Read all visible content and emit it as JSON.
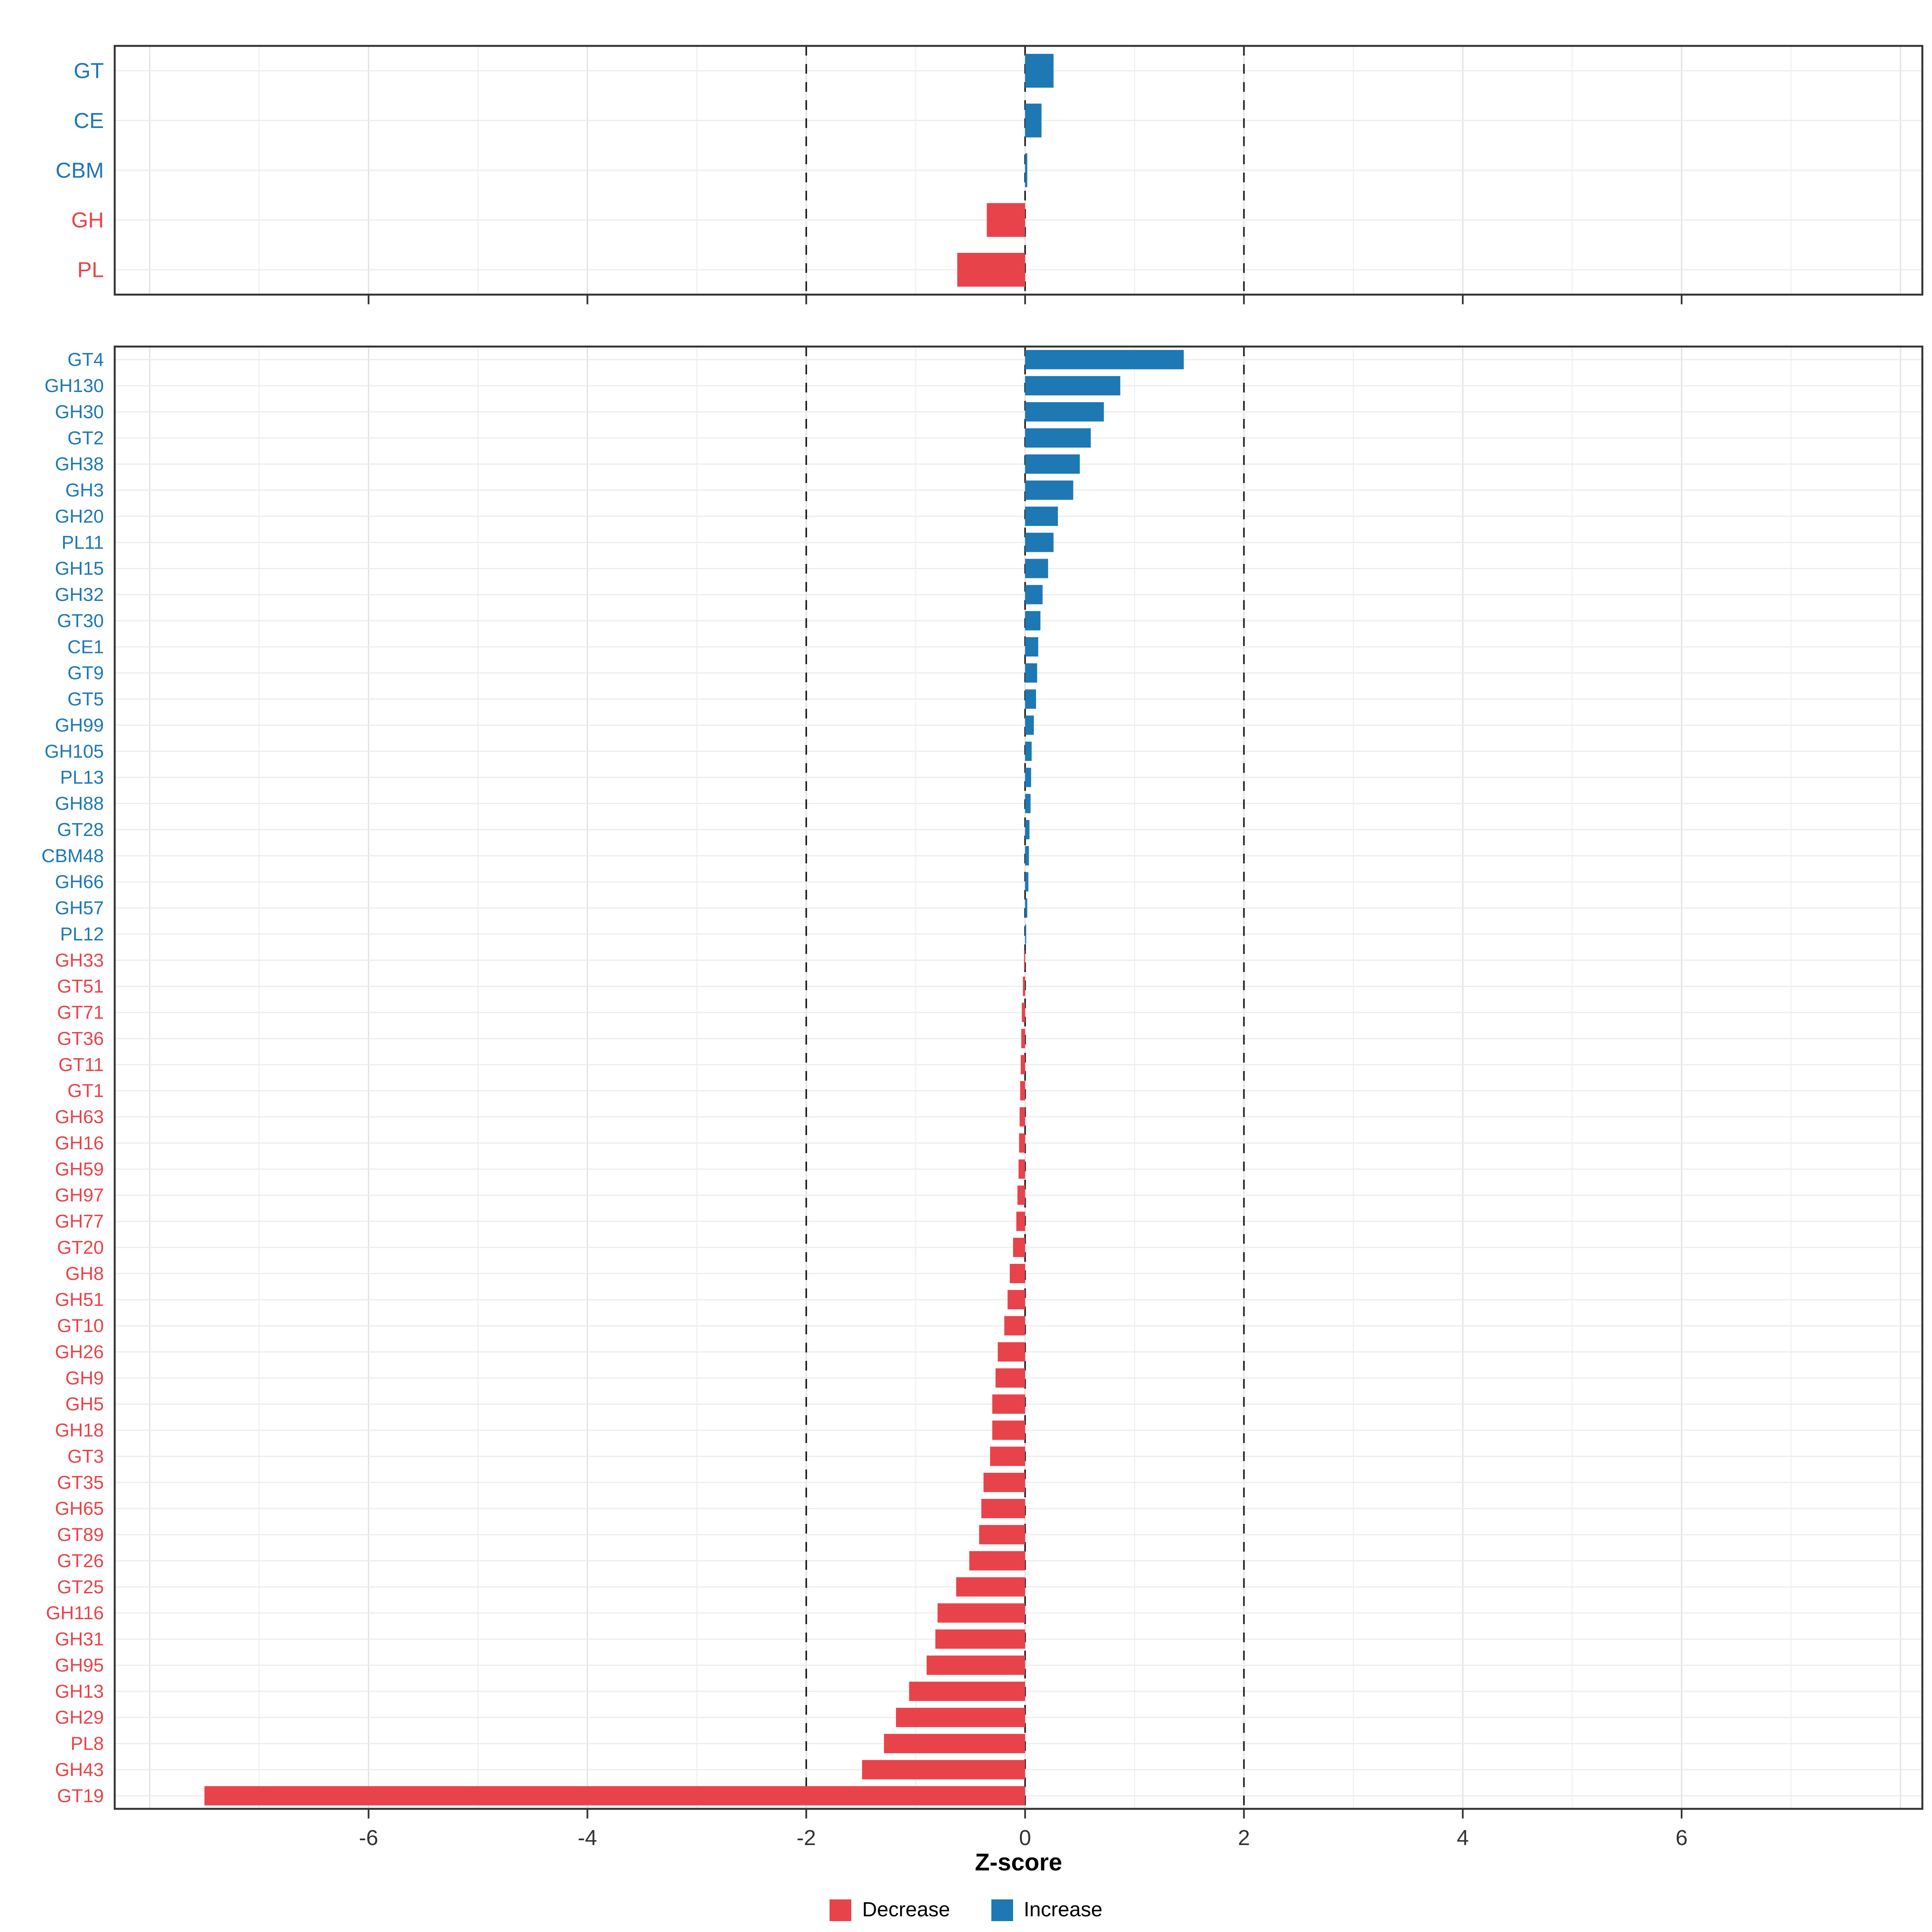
{
  "figure": {
    "xlabel": "Z-score",
    "x_ticks": [
      -6,
      -4,
      -2,
      0,
      2,
      4,
      6
    ],
    "x_range": [
      -8.32,
      8.2
    ],
    "dashed_lines": [
      -2,
      0,
      2
    ],
    "colors": {
      "decrease": "#E8434A",
      "increase": "#1E78B4",
      "panel_border": "#333333",
      "grid_major": "#e3e3e3",
      "grid_minor": "#f2f2f2",
      "row_grid": "#ededed",
      "tick_label": "#333333"
    },
    "legend": [
      {
        "label": "Decrease",
        "key": "decrease"
      },
      {
        "label": "Increase",
        "key": "increase"
      }
    ]
  },
  "chart_data": [
    {
      "type": "bar",
      "orientation": "horizontal",
      "panel": "groups",
      "title": "",
      "categories": [
        "GT",
        "CE",
        "CBM",
        "GH",
        "PL"
      ],
      "values": [
        0.26,
        0.15,
        0.02,
        -0.35,
        -0.62
      ]
    },
    {
      "type": "bar",
      "orientation": "horizontal",
      "panel": "families",
      "title": "",
      "categories": [
        "GT4",
        "GH130",
        "GH30",
        "GT2",
        "GH38",
        "GH3",
        "GH20",
        "PL11",
        "GH15",
        "GH32",
        "GT30",
        "CE1",
        "GT9",
        "GT5",
        "GH99",
        "GH105",
        "PL13",
        "GH88",
        "GT28",
        "CBM48",
        "GH66",
        "GH57",
        "PL12",
        "GH33",
        "GT51",
        "GT71",
        "GT36",
        "GT11",
        "GT1",
        "GH63",
        "GH16",
        "GH59",
        "GH97",
        "GH77",
        "GT20",
        "GH8",
        "GH51",
        "GT10",
        "GH26",
        "GH9",
        "GH5",
        "GH18",
        "GT3",
        "GT35",
        "GH65",
        "GT89",
        "GT26",
        "GT25",
        "GH116",
        "GH31",
        "GH95",
        "GH13",
        "GH29",
        "PL8",
        "GH43",
        "GT19"
      ],
      "values": [
        1.45,
        0.87,
        0.72,
        0.6,
        0.5,
        0.44,
        0.3,
        0.26,
        0.21,
        0.16,
        0.14,
        0.12,
        0.11,
        0.1,
        0.08,
        0.06,
        0.055,
        0.05,
        0.04,
        0.035,
        0.03,
        0.02,
        0.01,
        -0.01,
        -0.02,
        -0.03,
        -0.035,
        -0.04,
        -0.045,
        -0.05,
        -0.055,
        -0.06,
        -0.07,
        -0.08,
        -0.11,
        -0.14,
        -0.16,
        -0.19,
        -0.25,
        -0.27,
        -0.3,
        -0.3,
        -0.32,
        -0.38,
        -0.4,
        -0.42,
        -0.51,
        -0.63,
        -0.8,
        -0.82,
        -0.9,
        -1.06,
        -1.18,
        -1.29,
        -1.49,
        -7.5
      ]
    }
  ]
}
